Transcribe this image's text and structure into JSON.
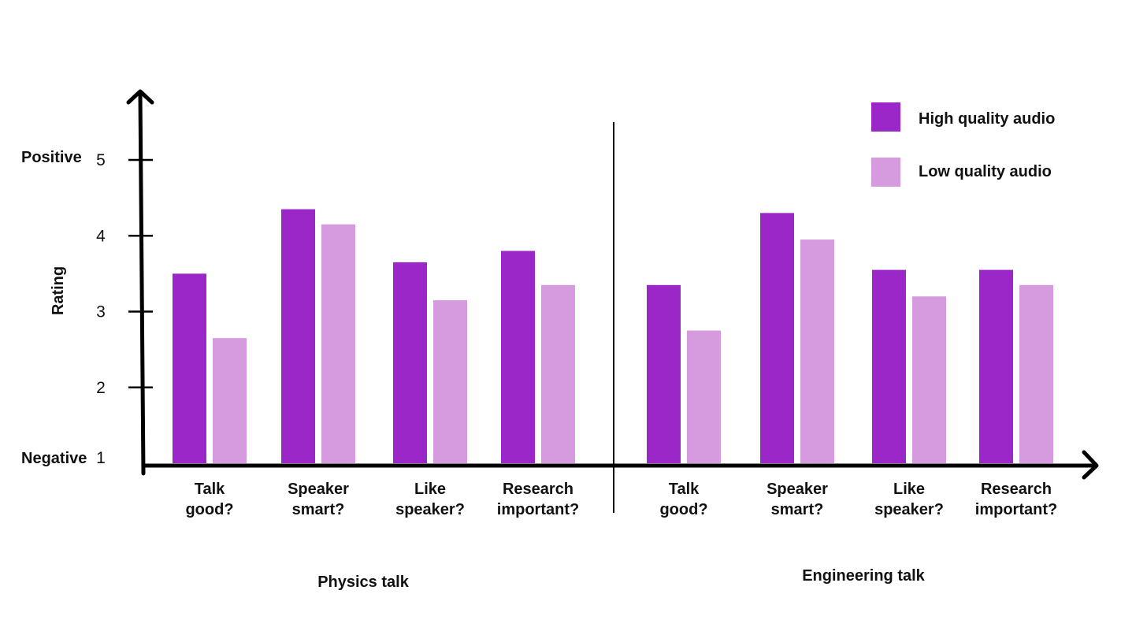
{
  "chart_data": {
    "type": "bar",
    "ylabel": "Rating",
    "ylim": [
      1,
      5
    ],
    "yticks": [
      "1",
      "2",
      "3",
      "4",
      "5"
    ],
    "y_end_labels": {
      "top": "Positive",
      "bottom": "Negative"
    },
    "legend_position": "top-right",
    "series_colors": [
      "#9c27c9",
      "#d69ade"
    ],
    "series": [
      {
        "name": "High quality audio"
      },
      {
        "name": "Low quality audio"
      }
    ],
    "groups": [
      {
        "name": "Physics talk",
        "categories": [
          [
            "Talk",
            "good?"
          ],
          [
            "Speaker",
            "smart?"
          ],
          [
            "Like",
            "speaker?"
          ],
          [
            "Research",
            "important?"
          ]
        ],
        "values": [
          [
            3.5,
            4.35,
            3.65,
            3.8
          ],
          [
            2.65,
            4.15,
            3.15,
            3.35
          ]
        ]
      },
      {
        "name": "Engineering talk",
        "categories": [
          [
            "Talk",
            "good?"
          ],
          [
            "Speaker",
            "smart?"
          ],
          [
            "Like",
            "speaker?"
          ],
          [
            "Research",
            "important?"
          ]
        ],
        "values": [
          [
            3.35,
            4.3,
            3.55,
            3.55
          ],
          [
            2.75,
            3.95,
            3.2,
            3.35
          ]
        ]
      }
    ]
  }
}
